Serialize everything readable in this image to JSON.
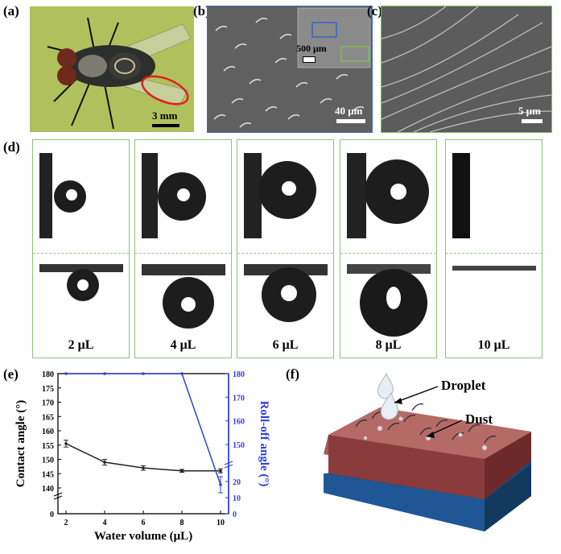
{
  "panels": {
    "a": {
      "label": "(a)",
      "scale": "3 mm"
    },
    "b": {
      "label": "(b)",
      "scale": "40 μm",
      "inset_scale": "500 μm"
    },
    "c": {
      "label": "(c)",
      "scale": "5 μm"
    },
    "d": {
      "label": "(d)",
      "volumes": [
        "2 μL",
        "4 μL",
        "6 μL",
        "8 μL",
        "10 μL"
      ]
    },
    "e": {
      "label": "(e)"
    },
    "f": {
      "label": "(f)",
      "droplet_label": "Droplet",
      "dust_label": "Dust"
    }
  },
  "chart_data": {
    "type": "line",
    "xlabel": "Water volume (μL)",
    "ylabel_left": "Contact angle (°)",
    "ylabel_right": "Roll-off angle (°)",
    "x": [
      2,
      4,
      6,
      8,
      10
    ],
    "x_ticks": [
      "2",
      "4",
      "6",
      "8",
      "10"
    ],
    "y_left_ticks": [
      "0",
      "140",
      "145",
      "150",
      "155",
      "160",
      "165",
      "170",
      "175",
      "180"
    ],
    "y_right_ticks": [
      "0",
      "10",
      "20",
      "150",
      "160",
      "170",
      "180"
    ],
    "series": [
      {
        "axis": "left",
        "color": "#222222",
        "values": [
          155.5,
          149,
          147,
          146,
          146
        ],
        "errors": [
          1.2,
          1.0,
          0.8,
          0.5,
          0.7
        ]
      },
      {
        "axis": "right",
        "color": "#2f3fe0",
        "values": [
          180,
          180,
          180,
          180,
          18
        ],
        "errors": [
          0,
          0,
          0,
          0,
          5
        ]
      }
    ],
    "axis_break": true
  }
}
